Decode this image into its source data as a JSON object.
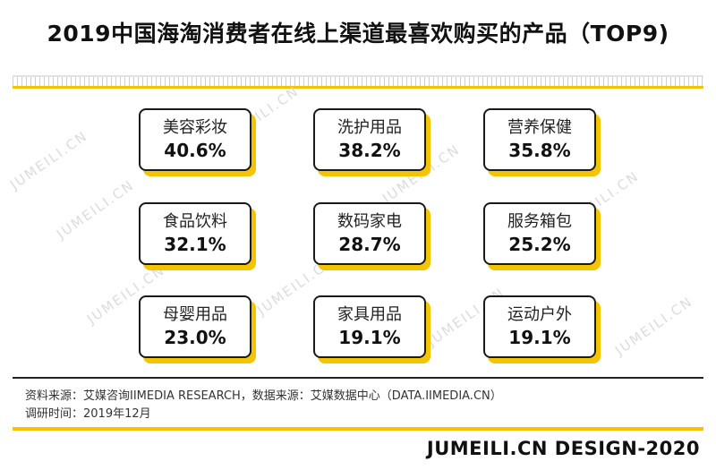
{
  "title": "2019中国海淘消费者在线上渠道最喜欢购买的产品（TOP9)",
  "watermark": "JUMEILI.CN",
  "colors": {
    "accent": "#f5c400",
    "border": "#1a1a1a"
  },
  "chart_data": {
    "type": "table",
    "title": "2019中国海淘消费者在线上渠道最喜欢购买的产品（TOP9)",
    "categories": [
      "美容彩妆",
      "洗护用品",
      "营养保健",
      "食品饮料",
      "数码家电",
      "服务箱包",
      "母婴用品",
      "家具用品",
      "运动户外"
    ],
    "values": [
      40.6,
      38.2,
      35.8,
      32.1,
      28.7,
      25.2,
      23.0,
      19.1,
      19.1
    ],
    "labels": [
      "40.6%",
      "38.2%",
      "35.8%",
      "32.1%",
      "28.7%",
      "25.2%",
      "23.0%",
      "19.1%",
      "19.1%"
    ]
  },
  "footer": {
    "source_line": "资料来源：艾媒咨询IIMEDIA RESEARCH，数据来源：艾媒数据中心（DATA.IIMEDIA.CN）",
    "date_line": "调研时间：2019年12月",
    "brand": "JUMEILI.CN DESIGN-2020"
  }
}
